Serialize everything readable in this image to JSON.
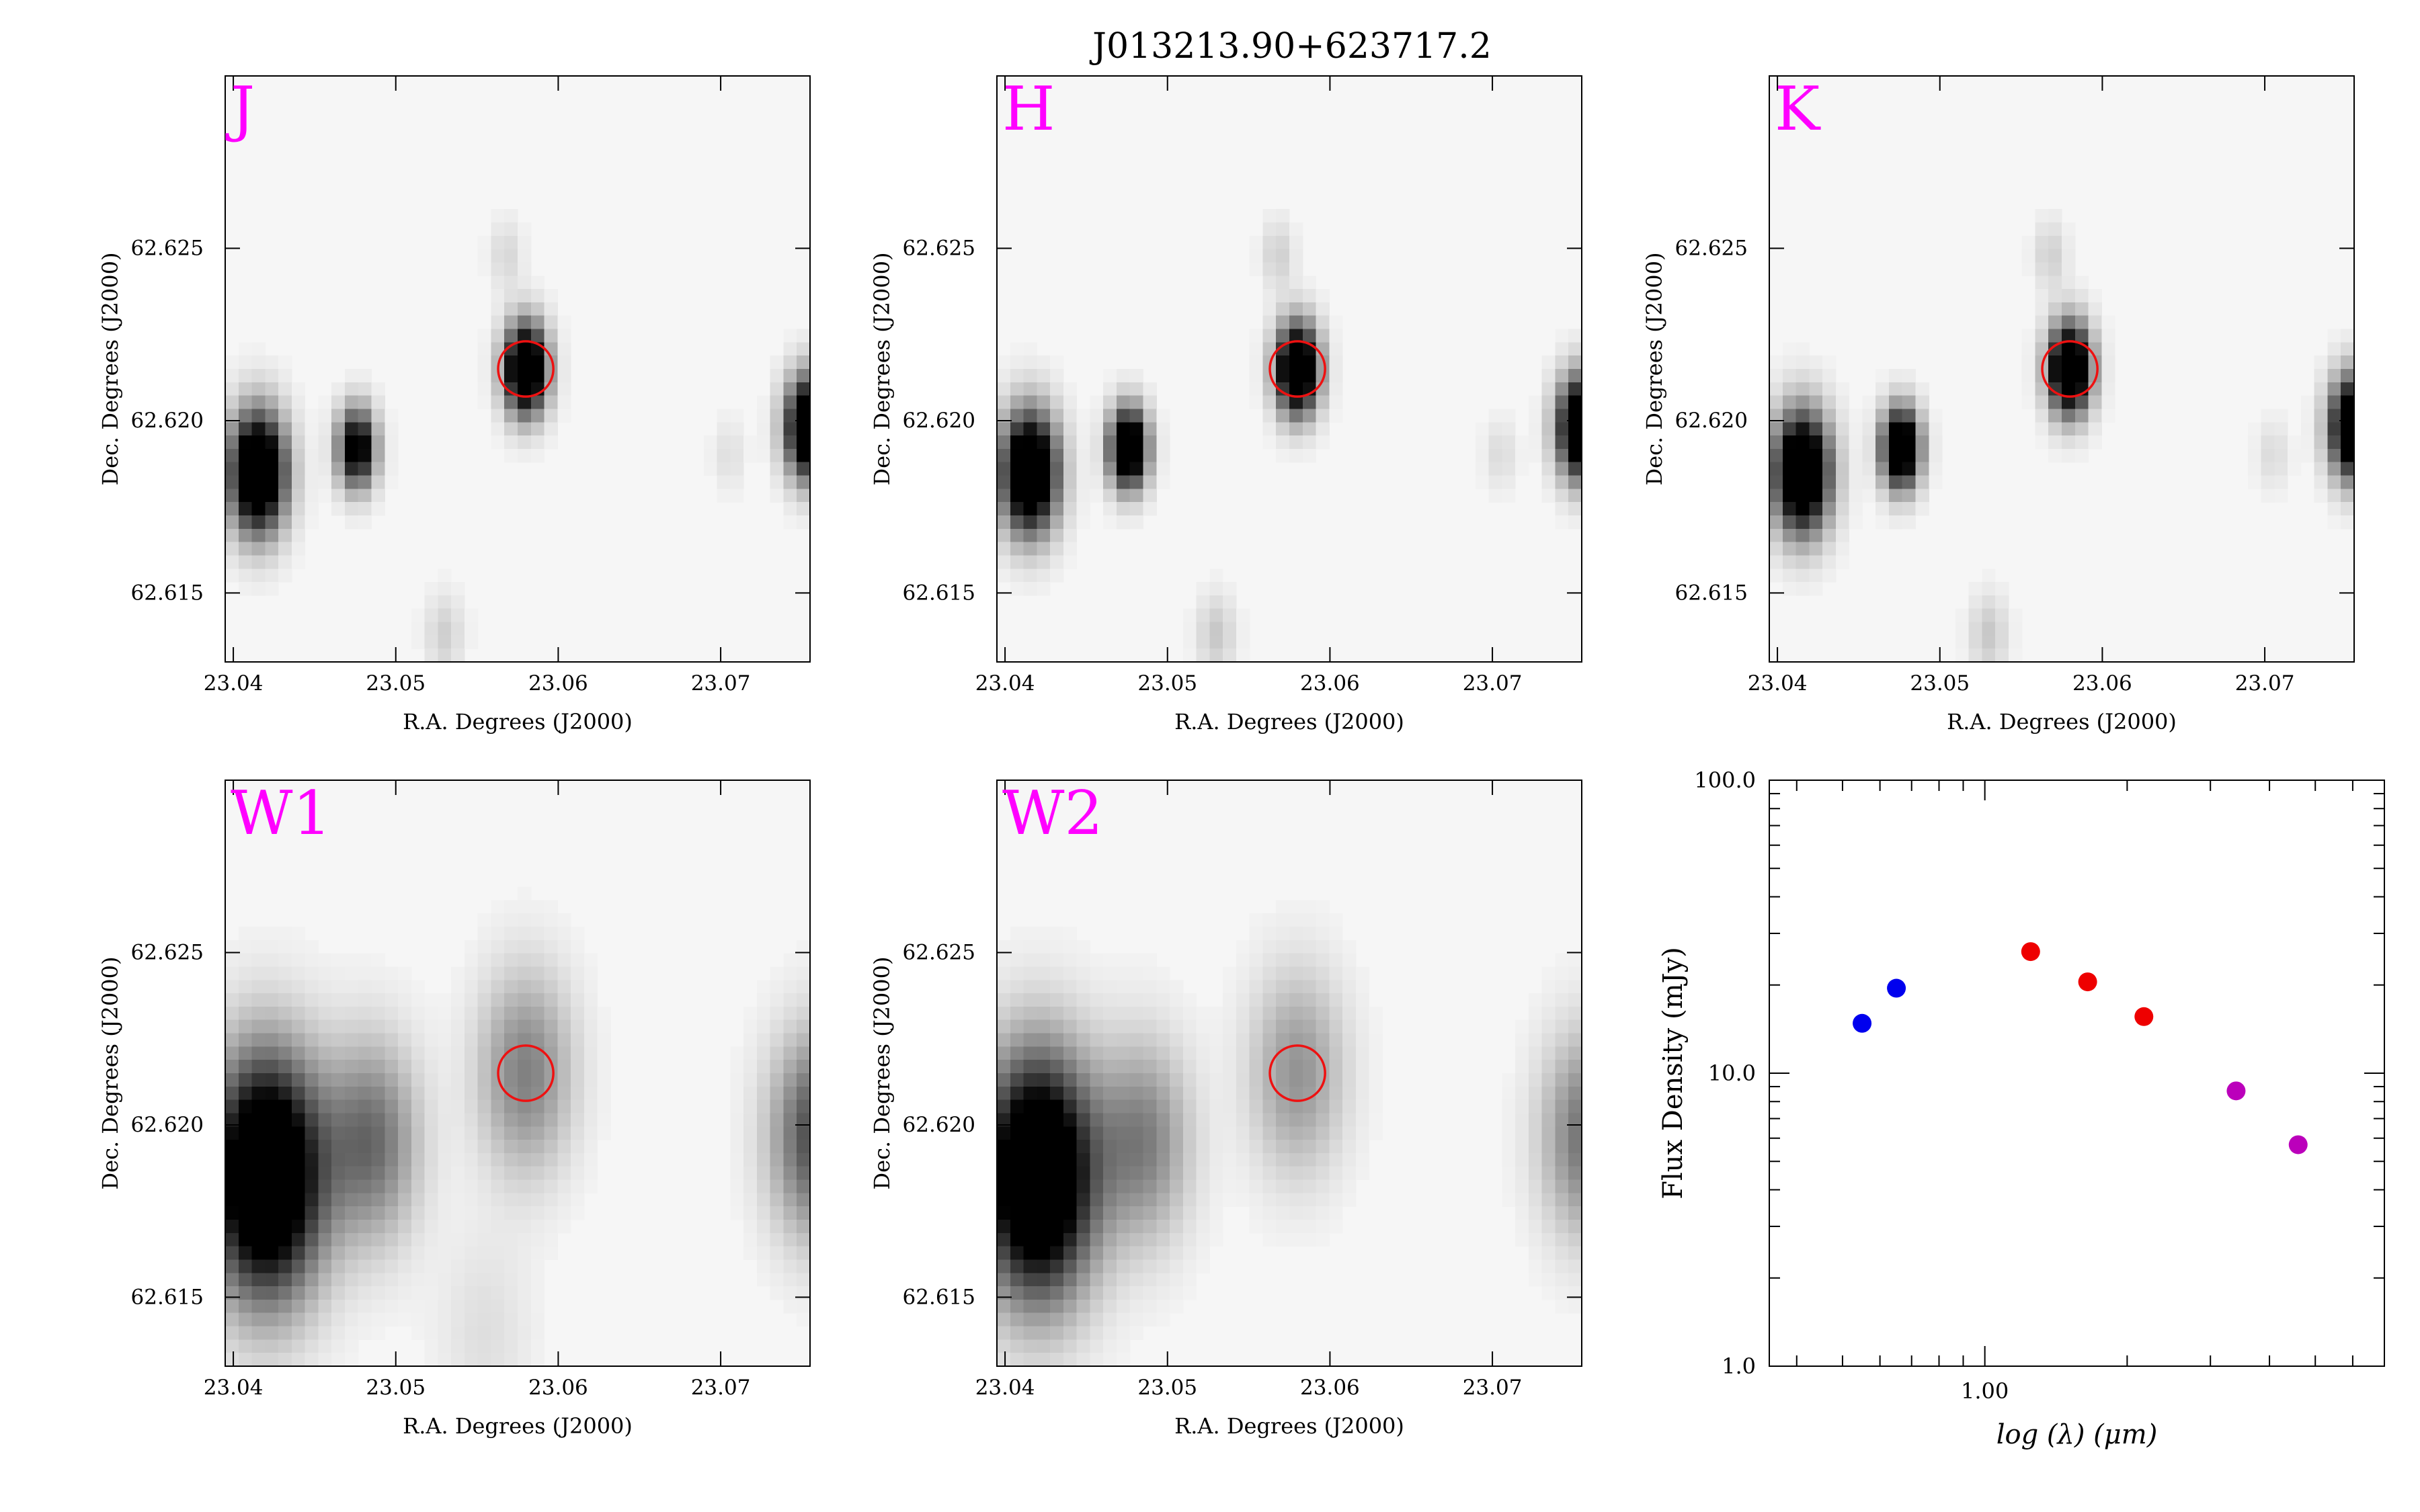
{
  "figure": {
    "title": "J013213.90+623717.2"
  },
  "chart_data": [
    {
      "type": "heatmap",
      "band": "J",
      "xlabel": "R.A. Degrees (J2000)",
      "ylabel": "Dec. Degrees (J2000)",
      "xlim": [
        23.0395,
        23.0755
      ],
      "ylim": [
        62.613,
        62.63
      ],
      "xticks": [
        "23.04",
        "23.05",
        "23.06",
        "23.07"
      ],
      "yticks": [
        "62.615",
        "62.620",
        "62.625"
      ],
      "target": {
        "ra": 23.058,
        "dec": 62.6215,
        "radius_deg": 0.0017
      },
      "sources": [
        {
          "ra": 23.0415,
          "dec": 62.6185,
          "peak": 1.0,
          "sigma_deg": 0.0012
        },
        {
          "ra": 23.0476,
          "dec": 62.6192,
          "peak": 0.75,
          "sigma_deg": 0.0008
        },
        {
          "ra": 23.058,
          "dec": 62.6215,
          "peak": 1.0,
          "sigma_deg": 0.0009
        },
        {
          "ra": 23.0755,
          "dec": 62.6198,
          "peak": 1.0,
          "sigma_deg": 0.001
        },
        {
          "ra": 23.0568,
          "dec": 62.6248,
          "peak": 0.08,
          "sigma_deg": 0.0007
        },
        {
          "ra": 23.053,
          "dec": 62.6138,
          "peak": 0.1,
          "sigma_deg": 0.0008
        },
        {
          "ra": 23.0705,
          "dec": 62.619,
          "peak": 0.06,
          "sigma_deg": 0.0007
        }
      ]
    },
    {
      "type": "heatmap",
      "band": "H",
      "xlabel": "R.A. Degrees (J2000)",
      "ylabel": "Dec. Degrees (J2000)",
      "xlim": [
        23.0395,
        23.0755
      ],
      "ylim": [
        62.613,
        62.63
      ],
      "xticks": [
        "23.04",
        "23.05",
        "23.06",
        "23.07"
      ],
      "yticks": [
        "62.615",
        "62.620",
        "62.625"
      ],
      "target": {
        "ra": 23.058,
        "dec": 62.6215,
        "radius_deg": 0.0017
      },
      "sources": [
        {
          "ra": 23.0415,
          "dec": 62.6185,
          "peak": 1.0,
          "sigma_deg": 0.0012
        },
        {
          "ra": 23.0476,
          "dec": 62.6192,
          "peak": 0.95,
          "sigma_deg": 0.0008
        },
        {
          "ra": 23.058,
          "dec": 62.6215,
          "peak": 1.0,
          "sigma_deg": 0.0009
        },
        {
          "ra": 23.0755,
          "dec": 62.6198,
          "peak": 1.0,
          "sigma_deg": 0.001
        },
        {
          "ra": 23.0568,
          "dec": 62.6248,
          "peak": 0.1,
          "sigma_deg": 0.0007
        },
        {
          "ra": 23.053,
          "dec": 62.6138,
          "peak": 0.12,
          "sigma_deg": 0.0008
        },
        {
          "ra": 23.0705,
          "dec": 62.619,
          "peak": 0.07,
          "sigma_deg": 0.0007
        }
      ]
    },
    {
      "type": "heatmap",
      "band": "K",
      "xlabel": "R.A. Degrees (J2000)",
      "ylabel": "Dec. Degrees (J2000)",
      "xlim": [
        23.0395,
        23.0755
      ],
      "ylim": [
        62.613,
        62.63
      ],
      "xticks": [
        "23.04",
        "23.05",
        "23.06",
        "23.07"
      ],
      "yticks": [
        "62.615",
        "62.620",
        "62.625"
      ],
      "target": {
        "ra": 23.058,
        "dec": 62.6215,
        "radius_deg": 0.0017
      },
      "sources": [
        {
          "ra": 23.0415,
          "dec": 62.6185,
          "peak": 1.0,
          "sigma_deg": 0.0012
        },
        {
          "ra": 23.0476,
          "dec": 62.6192,
          "peak": 0.95,
          "sigma_deg": 0.0008
        },
        {
          "ra": 23.058,
          "dec": 62.6215,
          "peak": 1.0,
          "sigma_deg": 0.0009
        },
        {
          "ra": 23.0755,
          "dec": 62.6198,
          "peak": 1.0,
          "sigma_deg": 0.001
        },
        {
          "ra": 23.0568,
          "dec": 62.6248,
          "peak": 0.1,
          "sigma_deg": 0.0007
        },
        {
          "ra": 23.053,
          "dec": 62.6138,
          "peak": 0.12,
          "sigma_deg": 0.0008
        },
        {
          "ra": 23.0705,
          "dec": 62.619,
          "peak": 0.07,
          "sigma_deg": 0.0007
        }
      ]
    },
    {
      "type": "heatmap",
      "band": "W1",
      "xlabel": "R.A. Degrees (J2000)",
      "ylabel": "Dec. Degrees (J2000)",
      "xlim": [
        23.0395,
        23.0755
      ],
      "ylim": [
        62.613,
        62.63
      ],
      "xticks": [
        "23.04",
        "23.05",
        "23.06",
        "23.07"
      ],
      "yticks": [
        "62.615",
        "62.620",
        "62.625"
      ],
      "target": {
        "ra": 23.058,
        "dec": 62.6215,
        "radius_deg": 0.0017
      },
      "sources": [
        {
          "ra": 23.042,
          "dec": 62.6185,
          "peak": 1.0,
          "sigma_deg": 0.0024
        },
        {
          "ra": 23.0485,
          "dec": 62.6195,
          "peak": 0.35,
          "sigma_deg": 0.002
        },
        {
          "ra": 23.058,
          "dec": 62.6215,
          "peak": 0.3,
          "sigma_deg": 0.002
        },
        {
          "ra": 23.076,
          "dec": 62.6197,
          "peak": 0.45,
          "sigma_deg": 0.002
        },
        {
          "ra": 23.0555,
          "dec": 62.614,
          "peak": 0.06,
          "sigma_deg": 0.002
        }
      ]
    },
    {
      "type": "heatmap",
      "band": "W2",
      "xlabel": "R.A. Degrees (J2000)",
      "ylabel": "Dec. Degrees (J2000)",
      "xlim": [
        23.0395,
        23.0755
      ],
      "ylim": [
        62.613,
        62.63
      ],
      "xticks": [
        "23.04",
        "23.05",
        "23.06",
        "23.07"
      ],
      "yticks": [
        "62.615",
        "62.620",
        "62.625"
      ],
      "target": {
        "ra": 23.058,
        "dec": 62.6215,
        "radius_deg": 0.0017
      },
      "sources": [
        {
          "ra": 23.042,
          "dec": 62.6185,
          "peak": 1.0,
          "sigma_deg": 0.0024
        },
        {
          "ra": 23.0485,
          "dec": 62.6195,
          "peak": 0.3,
          "sigma_deg": 0.002
        },
        {
          "ra": 23.058,
          "dec": 62.6215,
          "peak": 0.25,
          "sigma_deg": 0.002
        },
        {
          "ra": 23.076,
          "dec": 62.6197,
          "peak": 0.35,
          "sigma_deg": 0.002
        }
      ]
    },
    {
      "type": "scatter",
      "xlabel": "log (λ) (μm)",
      "ylabel": "Flux Density (mJy)",
      "xscale": "log",
      "yscale": "log",
      "xlim": [
        0.35,
        7.0
      ],
      "ylim": [
        1.0,
        100.0
      ],
      "xticks": [
        "1.00"
      ],
      "yticks": [
        "1.0",
        "10.0",
        "100.0"
      ],
      "series": [
        {
          "color": "#0000ee",
          "x": [
            0.55,
            0.65
          ],
          "y": [
            14.8,
            19.5
          ]
        },
        {
          "color": "#ee0000",
          "x": [
            1.25,
            1.65,
            2.17
          ],
          "y": [
            26.0,
            20.5,
            15.6
          ]
        },
        {
          "color": "#bb00bb",
          "x": [
            3.4,
            4.6
          ],
          "y": [
            8.7,
            5.7
          ]
        }
      ]
    }
  ]
}
